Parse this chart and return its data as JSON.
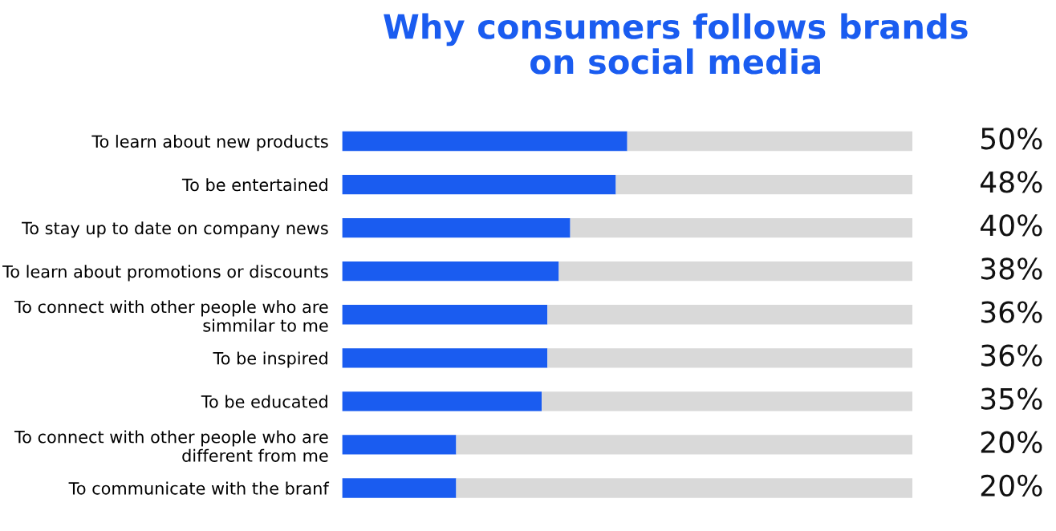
{
  "chart_data": {
    "type": "bar",
    "orientation": "horizontal",
    "stacked": true,
    "title": "Why consumers follows brands\non social media",
    "categories": [
      "To learn about new products",
      "To be entertained",
      "To stay up to date on company news",
      "To learn about promotions or discounts",
      "To connect with other people who are\nsimmilar to me",
      "To be inspired",
      "To be educated",
      "To connect with other people who are\ndifferent from me",
      "To communicate with the branf"
    ],
    "series": [
      {
        "color": "#1a5cf0",
        "values": [
          50,
          48,
          40,
          38,
          36,
          36,
          35,
          20,
          20
        ],
        "value_labels": [
          "50%",
          "48%",
          "40%",
          "38%",
          "36%",
          "36%",
          "35%",
          "20%",
          "20%"
        ]
      },
      {
        "color": "#d9d9d9",
        "values": [
          50,
          52,
          60,
          62,
          64,
          64,
          65,
          80,
          80
        ]
      }
    ]
  }
}
